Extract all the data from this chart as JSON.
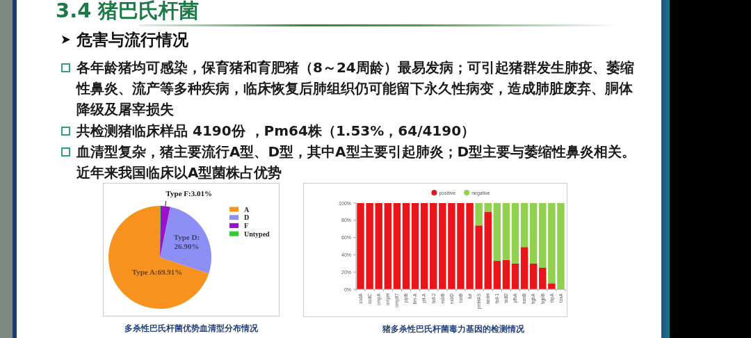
{
  "chart_data": [
    {
      "type": "other",
      "title": "3.4 猪巴氏杆菌",
      "subtitle": "危害与流行情况",
      "annotations": [
        "各年龄猪均可感染，保育猪和育肥猪（8～24周龄）最易发病；可引起猪群发生肺疫、萎缩性鼻炎、流产等多种疾病，临床恢复后肺组织仍可能留下永久性病变，造成肺脏废弃、胴体降级及屠宰损失",
        "共检测猪临床样品 4190份 ，Pm64株（1.53%，64/4190）",
        "血清型复杂，猪主要流行A型、D型，其中A型主要引起肺炎；D型主要与萎缩性鼻炎相关。近年来我国临床以A型菌株占优势"
      ]
    },
    {
      "type": "pie",
      "categories": [
        "A",
        "D",
        "F",
        "Untyped"
      ],
      "values": [
        69.91,
        26.9,
        3.01,
        0.18
      ],
      "colors": [
        "#f7931e",
        "#8e8ff5",
        "#9b10c8",
        "#33cc33"
      ],
      "value_labels": [
        "Type A:69.91%",
        "Type D: 26.90%",
        "Type F:3.01%",
        null
      ],
      "legend": "right",
      "annotations": [
        "多杀性巴氏杆菌优势血清型分布情况"
      ]
    },
    {
      "type": "bar",
      "stacked": true,
      "categories": [
        "sodA",
        "sodC",
        "ompA",
        "ompH",
        "omp87",
        "plpB",
        "fim-A",
        "ptf-A",
        "hsf-2",
        "exbB",
        "exbD",
        "tonB",
        "fur",
        "pmHAS",
        "nanH",
        "hsf-1",
        "tadD",
        "pfhA",
        "nanB",
        "hgbA",
        "hgbB",
        "tbpA",
        "toxA"
      ],
      "series": [
        {
          "name": "positive",
          "color": "#e8161b",
          "values": [
            100,
            100,
            100,
            100,
            100,
            100,
            100,
            100,
            100,
            100,
            100,
            100,
            100,
            74,
            90,
            33,
            34,
            30,
            49,
            30,
            25,
            7,
            0
          ]
        },
        {
          "name": "negative",
          "color": "#92d050",
          "values": [
            0,
            0,
            0,
            0,
            0,
            0,
            0,
            0,
            0,
            0,
            0,
            0,
            0,
            26,
            10,
            67,
            66,
            70,
            51,
            70,
            75,
            93,
            100
          ]
        }
      ],
      "ylim": [
        0,
        100
      ],
      "yticks": [
        {
          "value": 0,
          "label": "0%"
        },
        {
          "value": 20,
          "label": "20%"
        },
        {
          "value": 40,
          "label": "40%"
        },
        {
          "value": 60,
          "label": "60%"
        },
        {
          "value": 80,
          "label": "80%"
        },
        {
          "value": 100,
          "label": "100%"
        }
      ],
      "legend": "top",
      "annotations": [
        "猪多杀性巴氏杆菌毒力基因的检测情况"
      ]
    }
  ]
}
